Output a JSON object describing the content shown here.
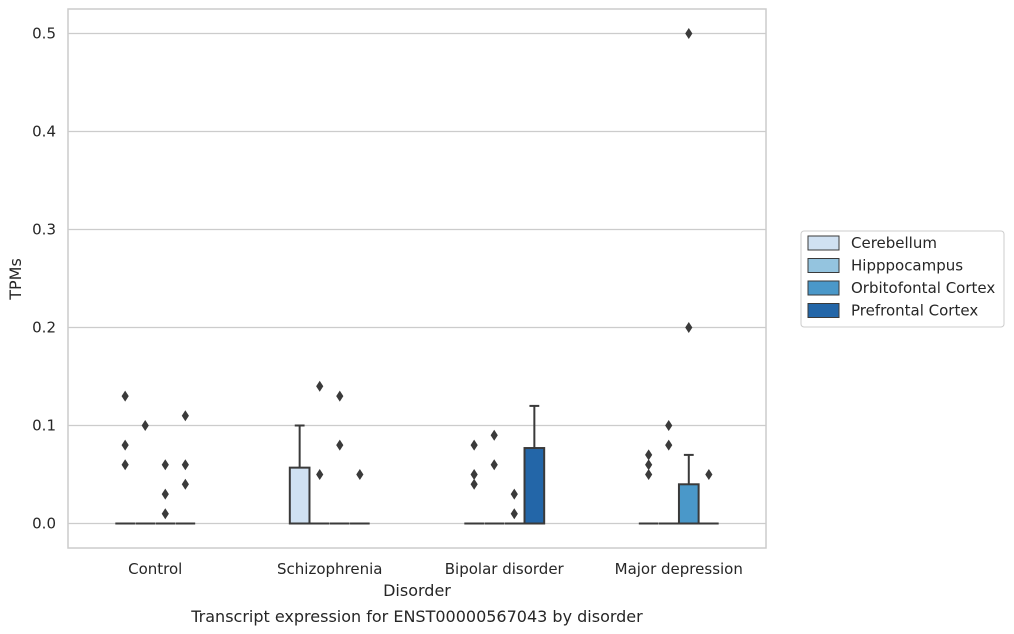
{
  "chart_data": {
    "type": "box",
    "xlabel": "Disorder",
    "ylabel": "TPMs",
    "caption": "Transcript expression for ENST00000567043 by disorder",
    "categories": [
      "Control",
      "Schizophrenia",
      "Bipolar disorder",
      "Major depression"
    ],
    "yticks": [
      "0.0",
      "0.1",
      "0.2",
      "0.3",
      "0.4",
      "0.5"
    ],
    "ylim": [
      -0.025,
      0.525
    ],
    "grid": "horizontal",
    "legend_position": "right",
    "colors": {
      "Cerebellum": "#d0e1f2",
      "Hipppocampus": "#94c4df",
      "Orbitofontal Cortex": "#4a98c9",
      "Prefrontal Cortex": "#2366a8",
      "line": "#3a3a3a",
      "grid": "#cccccc"
    },
    "series": [
      {
        "name": "Cerebellum",
        "boxes": [
          {
            "q1": 0,
            "median": 0,
            "q3": 0,
            "whisker_low": 0,
            "whisker_high": 0,
            "outliers": [
              0.13,
              0.08,
              0.06
            ]
          },
          {
            "q1": 0,
            "median": 0,
            "q3": 0.057,
            "whisker_low": 0,
            "whisker_high": 0.1,
            "outliers": []
          },
          {
            "q1": 0,
            "median": 0,
            "q3": 0,
            "whisker_low": 0,
            "whisker_high": 0,
            "outliers": [
              0.08,
              0.05,
              0.04
            ]
          },
          {
            "q1": 0,
            "median": 0,
            "q3": 0,
            "whisker_low": 0,
            "whisker_high": 0,
            "outliers": [
              0.07,
              0.06,
              0.05
            ]
          }
        ]
      },
      {
        "name": "Hipppocampus",
        "boxes": [
          {
            "q1": 0,
            "median": 0,
            "q3": 0,
            "whisker_low": 0,
            "whisker_high": 0,
            "outliers": [
              0.1
            ]
          },
          {
            "q1": 0,
            "median": 0,
            "q3": 0,
            "whisker_low": 0,
            "whisker_high": 0,
            "outliers": [
              0.14,
              0.05
            ]
          },
          {
            "q1": 0,
            "median": 0,
            "q3": 0,
            "whisker_low": 0,
            "whisker_high": 0,
            "outliers": [
              0.09,
              0.06
            ]
          },
          {
            "q1": 0,
            "median": 0,
            "q3": 0,
            "whisker_low": 0,
            "whisker_high": 0,
            "outliers": [
              0.1,
              0.08
            ]
          }
        ]
      },
      {
        "name": "Orbitofontal Cortex",
        "boxes": [
          {
            "q1": 0,
            "median": 0,
            "q3": 0,
            "whisker_low": 0,
            "whisker_high": 0,
            "outliers": [
              0.06,
              0.03,
              0.01
            ]
          },
          {
            "q1": 0,
            "median": 0,
            "q3": 0,
            "whisker_low": 0,
            "whisker_high": 0,
            "outliers": [
              0.13,
              0.08
            ]
          },
          {
            "q1": 0,
            "median": 0,
            "q3": 0,
            "whisker_low": 0,
            "whisker_high": 0,
            "outliers": [
              0.03,
              0.01
            ]
          },
          {
            "q1": 0,
            "median": 0,
            "q3": 0.04,
            "whisker_low": 0,
            "whisker_high": 0.07,
            "outliers": [
              0.5,
              0.2
            ]
          }
        ]
      },
      {
        "name": "Prefrontal Cortex",
        "boxes": [
          {
            "q1": 0,
            "median": 0,
            "q3": 0,
            "whisker_low": 0,
            "whisker_high": 0,
            "outliers": [
              0.11,
              0.06,
              0.04
            ]
          },
          {
            "q1": 0,
            "median": 0,
            "q3": 0,
            "whisker_low": 0,
            "whisker_high": 0,
            "outliers": [
              0.05
            ]
          },
          {
            "q1": 0,
            "median": 0,
            "q3": 0.077,
            "whisker_low": 0,
            "whisker_high": 0.12,
            "outliers": []
          },
          {
            "q1": 0,
            "median": 0,
            "q3": 0,
            "whisker_low": 0,
            "whisker_high": 0,
            "outliers": [
              0.05
            ]
          }
        ]
      }
    ]
  }
}
